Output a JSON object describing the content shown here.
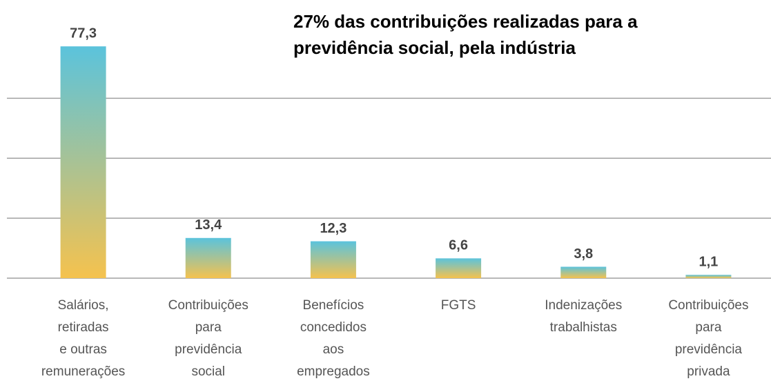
{
  "chart_data": {
    "type": "bar",
    "title": "27% das contribuições realizadas para a previdência social, pela indústria",
    "categories": [
      [
        "Salários,",
        "retiradas",
        "e outras",
        "remunerações"
      ],
      [
        "Contribuições",
        "para",
        "previdência",
        "social"
      ],
      [
        "Benefícios",
        "concedidos",
        "aos",
        "empregados"
      ],
      [
        "FGTS"
      ],
      [
        "Indenizações",
        "trabalhistas"
      ],
      [
        "Contribuições",
        "para",
        "previdência",
        "privada"
      ]
    ],
    "values": [
      77.3,
      13.4,
      12.3,
      6.6,
      3.8,
      1.1
    ],
    "value_labels": [
      "77,3",
      "13,4",
      "12,3",
      "6,6",
      "3,8",
      "1,1"
    ],
    "color": [
      "#5bc3dc",
      "#f5c24e"
    ],
    "ylim": [
      0,
      90
    ],
    "yticks": [
      0,
      20,
      40,
      60
    ],
    "grid": true
  }
}
